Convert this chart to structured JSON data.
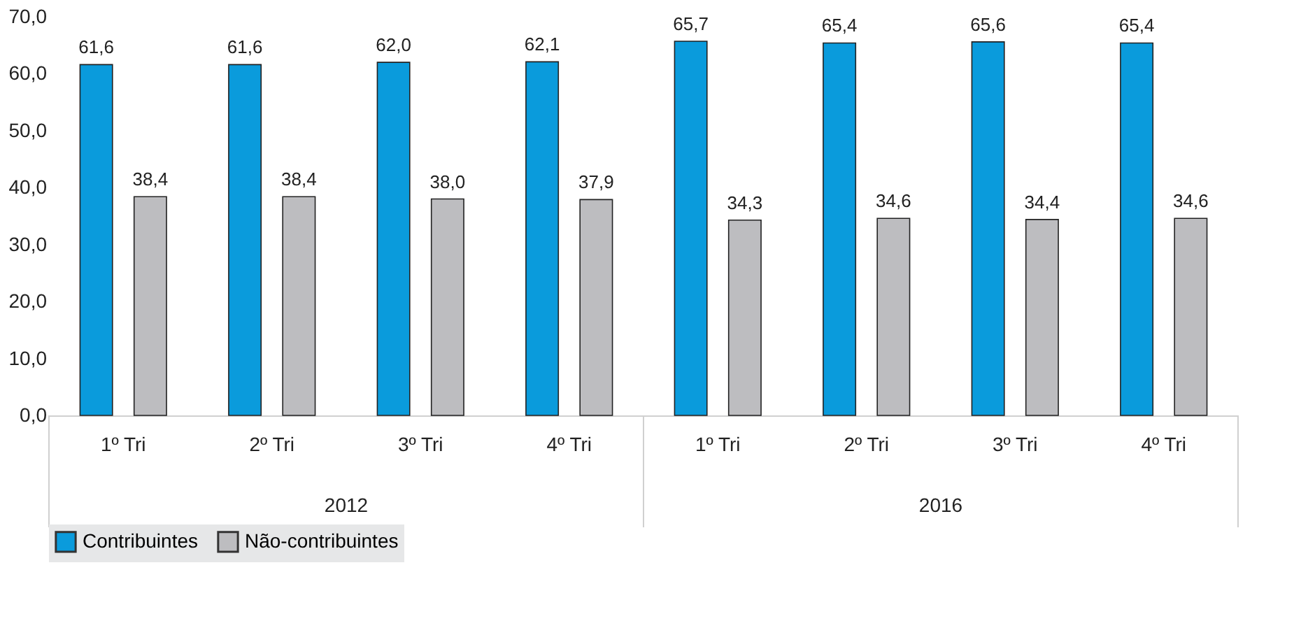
{
  "chart_data": {
    "type": "bar",
    "categories": [
      "1º Tri",
      "2º Tri",
      "3º Tri",
      "4º Tri",
      "1º Tri",
      "2º Tri",
      "3º Tri",
      "4º Tri"
    ],
    "series": [
      {
        "name": "Contribuintes",
        "color": "#0a9bdc",
        "values": [
          61.6,
          61.6,
          62.0,
          62.1,
          65.7,
          65.4,
          65.6,
          65.4
        ],
        "value_labels": [
          "61,6",
          "61,6",
          "62,0",
          "62,1",
          "65,7",
          "65,4",
          "65,6",
          "65,4"
        ]
      },
      {
        "name": "Não-contribuintes",
        "color": "#bdbdc0",
        "values": [
          38.4,
          38.4,
          38.0,
          37.9,
          34.3,
          34.6,
          34.4,
          34.6
        ],
        "value_labels": [
          "38,4",
          "38,4",
          "38,0",
          "37,9",
          "34,3",
          "34,6",
          "34,4",
          "34,6"
        ]
      }
    ],
    "annotations": [
      "2012",
      "2016"
    ],
    "ylim": [
      0,
      70
    ],
    "yticks": [
      {
        "value": 0,
        "label": "0,0"
      },
      {
        "value": 10,
        "label": "10,0"
      },
      {
        "value": 20,
        "label": "20,0"
      },
      {
        "value": 30,
        "label": "30,0"
      },
      {
        "value": 40,
        "label": "40,0"
      },
      {
        "value": 50,
        "label": "50,0"
      },
      {
        "value": 60,
        "label": "60,0"
      },
      {
        "value": 70,
        "label": "70,0"
      }
    ],
    "grid": false,
    "legend": "bottom left"
  }
}
